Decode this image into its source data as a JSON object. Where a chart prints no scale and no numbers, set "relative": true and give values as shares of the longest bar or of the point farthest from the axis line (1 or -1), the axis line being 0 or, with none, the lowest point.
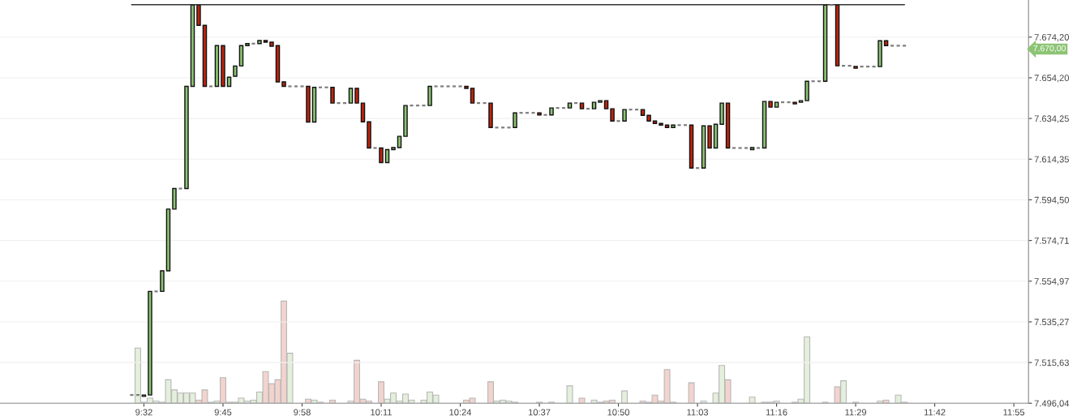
{
  "chart_data": [
    {
      "type": "candlestick",
      "x": [
        9.5,
        9.5167,
        9.5333,
        9.55,
        9.5667,
        9.5833,
        9.6,
        9.6167,
        9.6333,
        9.65,
        9.6667,
        9.6833,
        9.7,
        9.7167,
        9.7333,
        9.75,
        9.7667,
        9.7833,
        9.8,
        9.8167,
        9.8333,
        9.85,
        9.8667,
        9.8833,
        9.9,
        9.9167,
        9.9333,
        9.95,
        9.9667,
        9.9833,
        10.0,
        10.0167,
        10.0333,
        10.05,
        10.0667,
        10.0833,
        10.1,
        10.1167,
        10.1333,
        10.15,
        10.1667,
        10.1833,
        10.2,
        10.2167,
        10.2333,
        10.25,
        10.2667,
        10.2833,
        10.3,
        10.3167,
        10.3333,
        10.35,
        10.3667,
        10.3833,
        10.4,
        10.4167,
        10.4333,
        10.45,
        10.4667,
        10.4833,
        10.5,
        10.5167,
        10.5333,
        10.55,
        10.5667,
        10.5833,
        10.6,
        10.6167,
        10.6333,
        10.65,
        10.6667,
        10.6833,
        10.7,
        10.7167,
        10.7333,
        10.75,
        10.7667,
        10.7833,
        10.8,
        10.8167,
        10.8333,
        10.85,
        10.8667,
        10.8833,
        10.9,
        10.9167,
        10.9333,
        10.95,
        10.9667,
        10.9833,
        11.0,
        11.0167,
        11.0333,
        11.05,
        11.0667,
        11.0833,
        11.1,
        11.1167,
        11.1333,
        11.15,
        11.1667,
        11.1833,
        11.2,
        11.2167,
        11.2333,
        11.25,
        11.2667,
        11.2833,
        11.3,
        11.3167,
        11.3333,
        11.35,
        11.3667,
        11.3833,
        11.4,
        11.4167,
        11.4333,
        11.45,
        11.4667,
        11.4833,
        11.5,
        11.5167,
        11.5333,
        11.55,
        11.5667,
        11.5833,
        11.6,
        11.6167
      ],
      "ohlc": [
        [
          7500,
          7500,
          7500,
          7500
        ],
        [
          7500,
          7500,
          7500,
          7500
        ],
        [
          7499.3,
          7500,
          7499.3,
          7500
        ],
        [
          7500,
          7550,
          7500,
          7550
        ],
        [
          7550,
          7550,
          7550,
          7550
        ],
        [
          7550,
          7560,
          7550,
          7560
        ],
        [
          7560,
          7590,
          7560,
          7590
        ],
        [
          7590,
          7600,
          7590,
          7600
        ],
        [
          7600,
          7600,
          7600,
          7600
        ],
        [
          7600,
          7650,
          7600,
          7650
        ],
        [
          7650,
          7690,
          7650,
          7690
        ],
        [
          7690,
          7690,
          7680,
          7680
        ],
        [
          7680,
          7680,
          7650,
          7650
        ],
        [
          7650,
          7650,
          7650,
          7650
        ],
        [
          7650,
          7670,
          7650,
          7670
        ],
        [
          7670,
          7670,
          7650,
          7650
        ],
        [
          7650,
          7654.5,
          7650,
          7654.5
        ],
        [
          7655,
          7660,
          7655,
          7660
        ],
        [
          7660,
          7670,
          7660,
          7670
        ],
        [
          7670,
          7671,
          7670,
          7671
        ],
        [
          7671,
          7671,
          7671,
          7671
        ],
        [
          7671,
          7672.5,
          7671,
          7672.5
        ],
        [
          7672.5,
          7672.5,
          7671.7,
          7671.7
        ],
        [
          7671.7,
          7671.7,
          7669.7,
          7669.7
        ],
        [
          7670,
          7670,
          7652.2,
          7652.2
        ],
        [
          7652.2,
          7652.2,
          7650,
          7650
        ],
        [
          7650,
          7650,
          7650,
          7650
        ],
        [
          7650,
          7650,
          7650,
          7650
        ],
        [
          7650,
          7650,
          7650,
          7650
        ],
        [
          7650,
          7650,
          7632.5,
          7632.5
        ],
        [
          7632.5,
          7649.5,
          7632.5,
          7649.5
        ],
        [
          7649.5,
          7649.5,
          7649.5,
          7649.5
        ],
        [
          7649.5,
          7649.5,
          7649.5,
          7649.5
        ],
        [
          7649.5,
          7649.5,
          7641.8,
          7641.8
        ],
        [
          7641.8,
          7641.8,
          7641.8,
          7641.8
        ],
        [
          7641.8,
          7641.8,
          7641.8,
          7641.8
        ],
        [
          7641.8,
          7649,
          7641.8,
          7649
        ],
        [
          7649,
          7649,
          7641.8,
          7641.8
        ],
        [
          7641.8,
          7641.8,
          7632.6,
          7632.6
        ],
        [
          7632.6,
          7632.6,
          7619.8,
          7619.8
        ],
        [
          7619.8,
          7619.8,
          7619.8,
          7619.8
        ],
        [
          7619.8,
          7619.8,
          7612.7,
          7612.7
        ],
        [
          7612.7,
          7619,
          7612.7,
          7619
        ],
        [
          7619,
          7620,
          7619,
          7620
        ],
        [
          7620,
          7625.5,
          7620,
          7625.5
        ],
        [
          7625.5,
          7640.6,
          7625.5,
          7640.6
        ],
        [
          7640.6,
          7640.6,
          7640.6,
          7640.6
        ],
        [
          7640.6,
          7640.6,
          7640.6,
          7640.6
        ],
        [
          7640.6,
          7640.6,
          7640.6,
          7640.6
        ],
        [
          7640.6,
          7650,
          7640.6,
          7650
        ],
        [
          7650,
          7650,
          7650,
          7650
        ],
        [
          7650,
          7650,
          7650,
          7650
        ],
        [
          7650,
          7650,
          7650,
          7650
        ],
        [
          7650,
          7650,
          7650,
          7650
        ],
        [
          7650,
          7650,
          7650,
          7650
        ],
        [
          7650,
          7650,
          7649,
          7649
        ],
        [
          7649,
          7649,
          7641.8,
          7641.8
        ],
        [
          7641.8,
          7641.8,
          7641.8,
          7641.8
        ],
        [
          7641.8,
          7641.8,
          7641.8,
          7641.8
        ],
        [
          7641.8,
          7641.8,
          7629.8,
          7629.8
        ],
        [
          7629.8,
          7629.8,
          7629.8,
          7629.8
        ],
        [
          7629.8,
          7629.8,
          7629.8,
          7629.8
        ],
        [
          7629.8,
          7629.8,
          7629.8,
          7629.8
        ],
        [
          7629.8,
          7637,
          7629.8,
          7637
        ],
        [
          7637,
          7637,
          7637,
          7637
        ],
        [
          7637,
          7637,
          7637,
          7637
        ],
        [
          7637,
          7637,
          7637,
          7637
        ],
        [
          7637,
          7637,
          7636,
          7636
        ],
        [
          7636,
          7636,
          7636,
          7636
        ],
        [
          7636,
          7639.4,
          7636,
          7639.4
        ],
        [
          7639.4,
          7639.4,
          7639.4,
          7639.4
        ],
        [
          7639.4,
          7639.4,
          7639.4,
          7639.4
        ],
        [
          7639.4,
          7641.8,
          7639.4,
          7641.8
        ],
        [
          7641.8,
          7641.8,
          7641.8,
          7641.8
        ],
        [
          7641.8,
          7641.8,
          7639,
          7639
        ],
        [
          7639,
          7639,
          7639,
          7639
        ],
        [
          7639,
          7642.2,
          7639,
          7642.2
        ],
        [
          7642.2,
          7643,
          7642.2,
          7643
        ],
        [
          7643,
          7643,
          7639,
          7639
        ],
        [
          7639,
          7639,
          7633,
          7633
        ],
        [
          7633,
          7633,
          7633,
          7633
        ],
        [
          7633,
          7638.6,
          7633,
          7638.6
        ],
        [
          7638.6,
          7638.6,
          7638.6,
          7638.6
        ],
        [
          7638.6,
          7638.6,
          7638.6,
          7638.6
        ],
        [
          7638.6,
          7638.6,
          7635.8,
          7635.8
        ],
        [
          7635.8,
          7635.8,
          7633,
          7633
        ],
        [
          7633,
          7633,
          7631.8,
          7631.8
        ],
        [
          7631.8,
          7631.8,
          7631,
          7631
        ],
        [
          7631,
          7631,
          7629.8,
          7629.8
        ],
        [
          7629.8,
          7631,
          7629.8,
          7631
        ],
        [
          7631,
          7631,
          7631,
          7631
        ],
        [
          7631,
          7631,
          7631,
          7631
        ],
        [
          7631,
          7631,
          7610,
          7610
        ],
        [
          7610,
          7610,
          7610,
          7610
        ],
        [
          7610,
          7630.6,
          7610,
          7630.6
        ],
        [
          7630.6,
          7630.6,
          7619.8,
          7619.8
        ],
        [
          7619.8,
          7631.4,
          7619.8,
          7631.4
        ],
        [
          7631.4,
          7641.8,
          7631.4,
          7641.8
        ],
        [
          7641.8,
          7641.8,
          7619.8,
          7619.8
        ],
        [
          7619.8,
          7619.8,
          7619.8,
          7619.8
        ],
        [
          7619.8,
          7619.8,
          7619.8,
          7619.8
        ],
        [
          7619.8,
          7619.8,
          7619.8,
          7619.8
        ],
        [
          7619,
          7620,
          7619,
          7620
        ],
        [
          7619.8,
          7619.8,
          7619.8,
          7619.8
        ],
        [
          7619.8,
          7642.6,
          7619.8,
          7642.6
        ],
        [
          7642.6,
          7642.6,
          7639.8,
          7639.8
        ],
        [
          7639.8,
          7642.2,
          7639.8,
          7642.2
        ],
        [
          7642.2,
          7642.2,
          7642.2,
          7642.2
        ],
        [
          7642.2,
          7642.2,
          7642.2,
          7642.2
        ],
        [
          7642.2,
          7642.2,
          7641.4,
          7641.4
        ],
        [
          7642.2,
          7643,
          7642.2,
          7643
        ],
        [
          7643,
          7652.5,
          7643,
          7652.5
        ],
        [
          7652.5,
          7652.5,
          7652.5,
          7652.5
        ],
        [
          7652.5,
          7652.5,
          7652.5,
          7652.5
        ],
        [
          7652.5,
          7690,
          7652.5,
          7690
        ],
        [
          7690,
          7690,
          7690,
          7690
        ],
        [
          7690,
          7690,
          7660.1,
          7660.1
        ],
        [
          7660.1,
          7660.1,
          7660.1,
          7660.1
        ],
        [
          7660.1,
          7660.1,
          7660.1,
          7660.1
        ],
        [
          7659.8,
          7659.8,
          7658.9,
          7658.9
        ],
        [
          7659.7,
          7659.7,
          7659.7,
          7659.7
        ],
        [
          7659.7,
          7659.7,
          7659.7,
          7659.7
        ],
        [
          7659.7,
          7659.7,
          7659.7,
          7659.7
        ],
        [
          7659.7,
          7672.4,
          7659.7,
          7672.4
        ],
        [
          7672.4,
          7672.4,
          7670,
          7670
        ],
        [
          7670,
          7670,
          7670,
          7670
        ],
        [
          7670,
          7670,
          7670,
          7670
        ],
        [
          7670,
          7670,
          7670,
          7670
        ]
      ],
      "colors": [
        "#7f7f7f",
        "#7f7f7f",
        "#8cc474",
        "#8cc474",
        "#7f7f7f",
        "#8cc474",
        "#8cc474",
        "#8cc474",
        "#7f7f7f",
        "#8cc474",
        "#8cc474",
        "#c1250c",
        "#c1250c",
        "#7f7f7f",
        "#8cc474",
        "#c1250c",
        "#8cc474",
        "#8cc474",
        "#8cc474",
        "#8cc474",
        "#7f7f7f",
        "#8cc474",
        "#c1250c",
        "#c1250c",
        "#c1250c",
        "#c1250c",
        "#7f7f7f",
        "#7f7f7f",
        "#7f7f7f",
        "#c1250c",
        "#8cc474",
        "#7f7f7f",
        "#7f7f7f",
        "#c1250c",
        "#7f7f7f",
        "#7f7f7f",
        "#8cc474",
        "#c1250c",
        "#c1250c",
        "#c1250c",
        "#7f7f7f",
        "#c1250c",
        "#8cc474",
        "#8cc474",
        "#8cc474",
        "#8cc474",
        "#7f7f7f",
        "#7f7f7f",
        "#7f7f7f",
        "#8cc474",
        "#7f7f7f",
        "#7f7f7f",
        "#7f7f7f",
        "#7f7f7f",
        "#7f7f7f",
        "#c1250c",
        "#c1250c",
        "#7f7f7f",
        "#7f7f7f",
        "#c1250c",
        "#7f7f7f",
        "#7f7f7f",
        "#7f7f7f",
        "#8cc474",
        "#7f7f7f",
        "#7f7f7f",
        "#7f7f7f",
        "#c1250c",
        "#7f7f7f",
        "#8cc474",
        "#7f7f7f",
        "#7f7f7f",
        "#8cc474",
        "#7f7f7f",
        "#c1250c",
        "#7f7f7f",
        "#8cc474",
        "#8cc474",
        "#c1250c",
        "#c1250c",
        "#7f7f7f",
        "#8cc474",
        "#7f7f7f",
        "#7f7f7f",
        "#c1250c",
        "#c1250c",
        "#c1250c",
        "#c1250c",
        "#c1250c",
        "#8cc474",
        "#7f7f7f",
        "#7f7f7f",
        "#c1250c",
        "#7f7f7f",
        "#8cc474",
        "#c1250c",
        "#8cc474",
        "#8cc474",
        "#c1250c",
        "#7f7f7f",
        "#7f7f7f",
        "#7f7f7f",
        "#8cc474",
        "#7f7f7f",
        "#8cc474",
        "#c1250c",
        "#8cc474",
        "#7f7f7f",
        "#7f7f7f",
        "#c1250c",
        "#8cc474",
        "#8cc474",
        "#7f7f7f",
        "#7f7f7f",
        "#8cc474",
        "#7f7f7f",
        "#c1250c",
        "#7f7f7f",
        "#7f7f7f",
        "#c1250c",
        "#7f7f7f",
        "#7f7f7f",
        "#7f7f7f",
        "#8cc474",
        "#c1250c",
        "#7f7f7f",
        "#7f7f7f",
        "#7f7f7f"
      ],
      "log": true,
      "xlim": [
        9.139,
        11.957
      ],
      "xticks": [
        {
          "value": 9.5333,
          "label": "9:32"
        },
        {
          "value": 9.75,
          "label": "9:45"
        },
        {
          "value": 9.9667,
          "label": "9:58"
        },
        {
          "value": 10.1833,
          "label": "10:11"
        },
        {
          "value": 10.4,
          "label": "10:24"
        },
        {
          "value": 10.6167,
          "label": "10:37"
        },
        {
          "value": 10.8333,
          "label": "10:50"
        },
        {
          "value": 11.05,
          "label": "11:03"
        },
        {
          "value": 11.2667,
          "label": "11:16"
        },
        {
          "value": 11.4833,
          "label": "11:29"
        },
        {
          "value": 11.7,
          "label": "11:42"
        },
        {
          "value": 11.9167,
          "label": "11:55"
        }
      ],
      "ylim": [
        7496.04,
        7692.5
      ],
      "yticks": [
        {
          "value": 7496.04,
          "label": "7.496,04"
        },
        {
          "value": 7515.63,
          "label": "7.515,63"
        },
        {
          "value": 7535.27,
          "label": "7.535,27"
        },
        {
          "value": 7554.97,
          "label": "7.554,97"
        },
        {
          "value": 7574.71,
          "label": "7.574,71"
        },
        {
          "value": 7594.5,
          "label": "7.594,50"
        },
        {
          "value": 7614.35,
          "label": "7.614,35"
        },
        {
          "value": 7634.25,
          "label": "7.634,25"
        },
        {
          "value": 7654.2,
          "label": "7.654,20"
        },
        {
          "value": 7674.2,
          "label": "7.674,20"
        }
      ],
      "ref_lines": [
        {
          "axis": "y",
          "value": 7690.2,
          "color": "#333333"
        }
      ],
      "annotations": [
        "7.670,00"
      ],
      "grid": "y"
    },
    {
      "type": "bar",
      "relative": true,
      "x": [
        9.5167,
        9.5333,
        9.55,
        9.5667,
        9.5833,
        9.6,
        9.6167,
        9.6333,
        9.65,
        9.6667,
        9.6833,
        9.7,
        9.7167,
        9.7333,
        9.75,
        9.7667,
        9.7833,
        9.8,
        9.8167,
        9.8333,
        9.85,
        9.8667,
        9.8833,
        9.9,
        9.9167,
        9.9333,
        9.9833,
        10.0,
        10.0167,
        10.05,
        10.1,
        10.1167,
        10.1333,
        10.15,
        10.1833,
        10.2,
        10.2167,
        10.2333,
        10.25,
        10.2667,
        10.3,
        10.3167,
        10.3333,
        10.4167,
        10.4333,
        10.4833,
        10.5,
        10.5167,
        10.5333,
        10.55,
        10.6167,
        10.65,
        10.7,
        10.7333,
        10.7667,
        10.7833,
        10.8,
        10.8167,
        10.85,
        10.9,
        10.9167,
        10.9333,
        10.95,
        10.9667,
        10.9833,
        11.0333,
        11.0667,
        11.1,
        11.1167,
        11.1333,
        11.2,
        11.2333,
        11.25,
        11.2667,
        11.3167,
        11.3333,
        11.35,
        11.4,
        11.4333,
        11.45,
        11.4833,
        11.55,
        11.5667,
        11.6,
        11.6167
      ],
      "values": [
        0.54,
        0.01,
        0.05,
        0.02,
        0.01,
        0.23,
        0.13,
        0.1,
        0.1,
        0.1,
        0.03,
        0.13,
        0.01,
        0.02,
        0.25,
        0.01,
        0.01,
        0.05,
        0.02,
        0.03,
        0.11,
        0.31,
        0.19,
        0.23,
        1,
        0.49,
        0.04,
        0.03,
        0.01,
        0.03,
        0.02,
        0.42,
        0.04,
        0.02,
        0.21,
        0.04,
        0.1,
        0.02,
        0.09,
        0.03,
        0.03,
        0.11,
        0.08,
        0.03,
        0.05,
        0.21,
        0.02,
        0.03,
        0.02,
        0.01,
        0.01,
        0.01,
        0.17,
        0.05,
        0.03,
        0.01,
        0.02,
        0.03,
        0.12,
        0.02,
        0.01,
        0.08,
        0.02,
        0.33,
        0.01,
        0.2,
        0.02,
        0.1,
        0.37,
        0.23,
        0.06,
        0.01,
        0.01,
        0.02,
        0.01,
        0.04,
        0.65,
        0.01,
        0.16,
        0.22,
        0.01,
        0.02,
        0.03,
        0.08,
        0.01
      ],
      "colors": [
        "#e4efdc",
        "#e4efdc",
        "#e4efdc",
        "#e4efdc",
        "#e4efdc",
        "#e4efdc",
        "#e4efdc",
        "#e4efdc",
        "#e4efdc",
        "#e4efdc",
        "#f2d3cd",
        "#f2d3cd",
        "#e4efdc",
        "#e4efdc",
        "#f2d3cd",
        "#e4efdc",
        "#e4efdc",
        "#e4efdc",
        "#e4efdc",
        "#e4efdc",
        "#e4efdc",
        "#f2d3cd",
        "#f2d3cd",
        "#f2d3cd",
        "#f2d3cd",
        "#e4efdc",
        "#f2d3cd",
        "#e4efdc",
        "#e4efdc",
        "#f2d3cd",
        "#e4efdc",
        "#f2d3cd",
        "#f2d3cd",
        "#f2d3cd",
        "#f2d3cd",
        "#e4efdc",
        "#e4efdc",
        "#e4efdc",
        "#e4efdc",
        "#e4efdc",
        "#e4efdc",
        "#e4efdc",
        "#e4efdc",
        "#f2d3cd",
        "#f2d3cd",
        "#f2d3cd",
        "#e4efdc",
        "#e4efdc",
        "#e4efdc",
        "#e4efdc",
        "#f2d3cd",
        "#e4efdc",
        "#e4efdc",
        "#f2d3cd",
        "#e4efdc",
        "#e4efdc",
        "#f2d3cd",
        "#f2d3cd",
        "#e4efdc",
        "#f2d3cd",
        "#f2d3cd",
        "#f2d3cd",
        "#f2d3cd",
        "#f2d3cd",
        "#e4efdc",
        "#f2d3cd",
        "#e4efdc",
        "#e4efdc",
        "#e4efdc",
        "#f2d3cd",
        "#e4efdc",
        "#e4efdc",
        "#f2d3cd",
        "#e4efdc",
        "#f2d3cd",
        "#e4efdc",
        "#e4efdc",
        "#e4efdc",
        "#f2d3cd",
        "#e4efdc",
        "#f2d3cd",
        "#e4efdc",
        "#f2d3cd",
        "#e4efdc",
        "#e4efdc"
      ],
      "xlim": [
        9.139,
        11.957
      ]
    }
  ]
}
